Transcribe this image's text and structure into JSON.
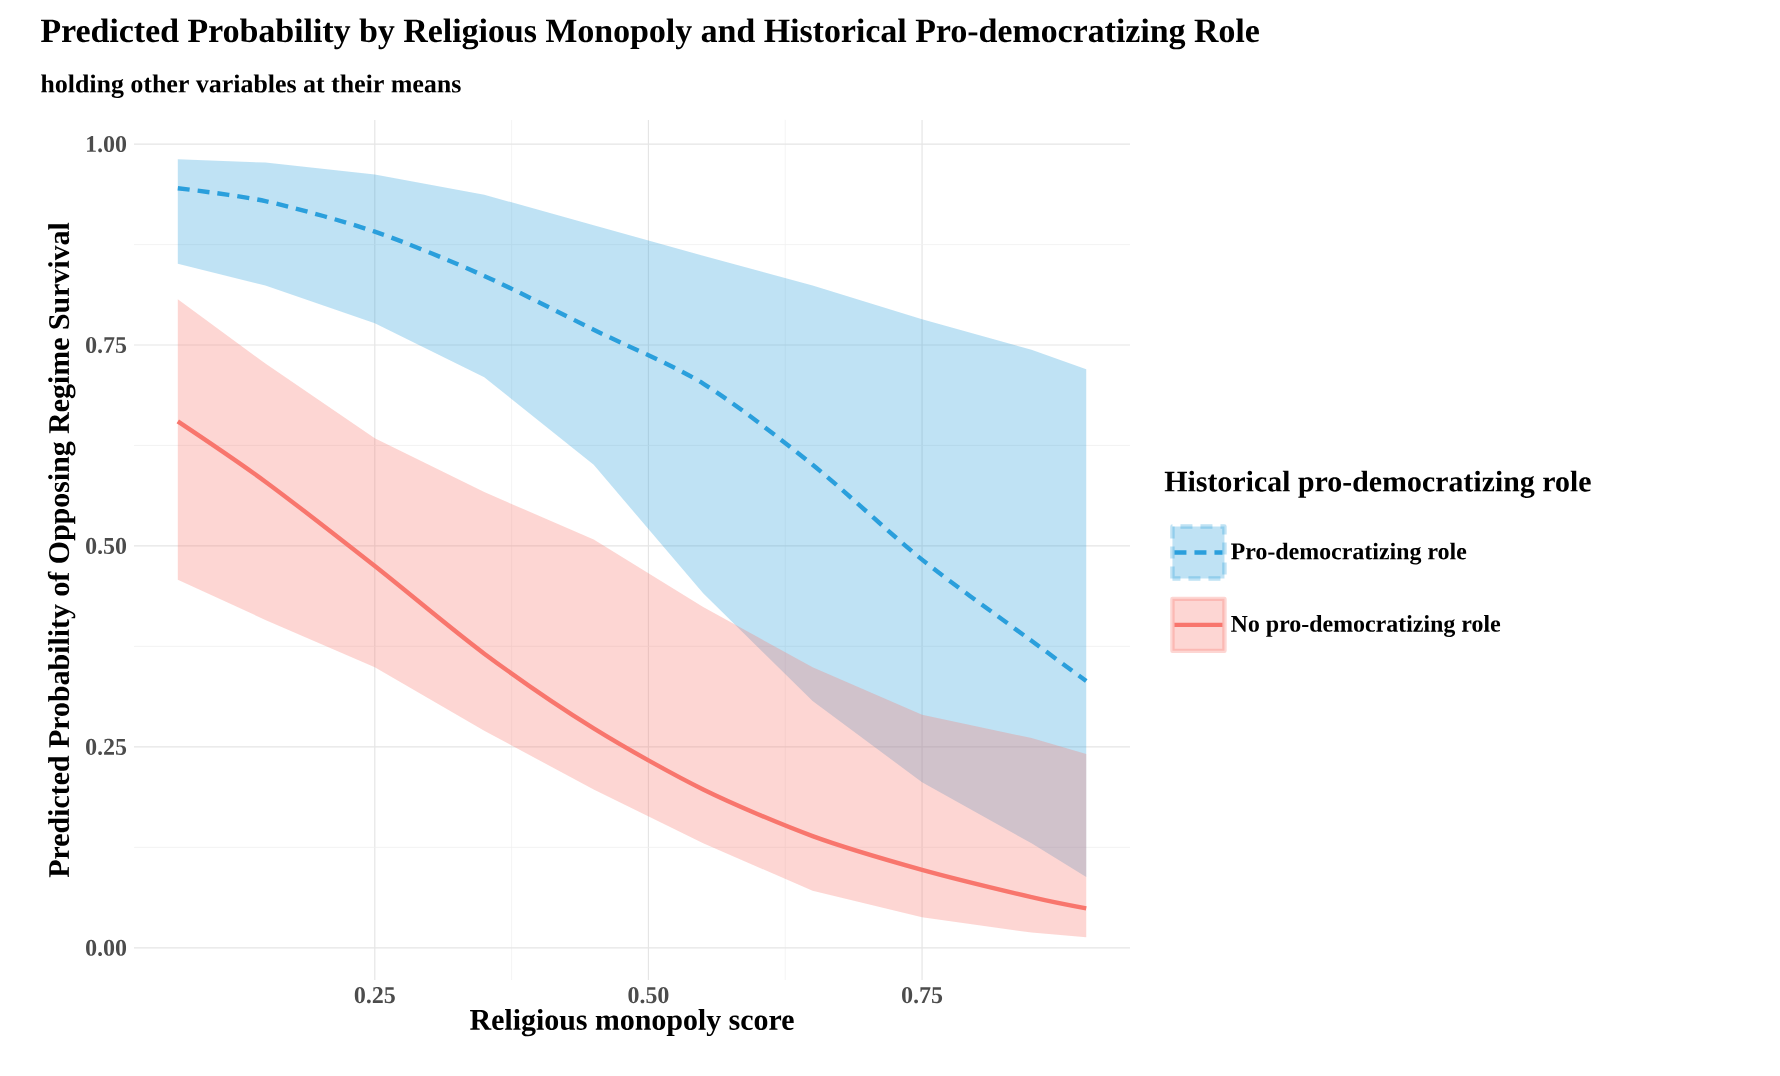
{
  "chart_data": {
    "type": "line",
    "title": "Predicted Probability by Religious Monopoly and Historical Pro-democratizing Role",
    "subtitle": "holding other variables at their means",
    "xlabel": "Religious monopoly score",
    "ylabel": "Predicted Probability of Opposing Regime Survival",
    "legend_title": "Historical pro-democratizing role",
    "xlim": [
      0.03,
      0.94
    ],
    "ylim": [
      -0.04,
      1.03
    ],
    "xticks": [
      {
        "value": 0.25,
        "label": "0.25"
      },
      {
        "value": 0.5,
        "label": "0.50"
      },
      {
        "value": 0.75,
        "label": "0.75"
      }
    ],
    "yticks": [
      {
        "value": 0,
        "label": "0.00"
      },
      {
        "value": 0.25,
        "label": "0.25"
      },
      {
        "value": 0.5,
        "label": "0.50"
      },
      {
        "value": 0.75,
        "label": "0.75"
      },
      {
        "value": 1,
        "label": "1.00"
      }
    ],
    "grid": true,
    "legend": "right",
    "x": [
      0.07,
      0.15,
      0.25,
      0.35,
      0.45,
      0.55,
      0.65,
      0.75,
      0.85,
      0.9
    ],
    "series": [
      {
        "name": "Pro-democratizing role",
        "color": "#2a9fdc",
        "line_style": "dashed",
        "values": [
          0.945,
          0.929,
          0.891,
          0.836,
          0.769,
          0.702,
          0.601,
          0.483,
          0.382,
          0.332
        ],
        "lower": [
          0.851,
          0.824,
          0.777,
          0.71,
          0.601,
          0.441,
          0.307,
          0.206,
          0.13,
          0.088
        ],
        "upper": [
          0.981,
          0.977,
          0.962,
          0.937,
          0.899,
          0.861,
          0.824,
          0.782,
          0.744,
          0.72
        ]
      },
      {
        "name": "No pro-democratizing role",
        "color": "#f8766d",
        "line_style": "solid",
        "values": [
          0.655,
          0.58,
          0.475,
          0.366,
          0.273,
          0.197,
          0.139,
          0.097,
          0.063,
          0.049
        ],
        "lower": [
          0.458,
          0.408,
          0.349,
          0.27,
          0.197,
          0.13,
          0.071,
          0.038,
          0.019,
          0.013
        ],
        "upper": [
          0.807,
          0.727,
          0.634,
          0.567,
          0.508,
          0.424,
          0.349,
          0.29,
          0.261,
          0.241
        ]
      }
    ]
  }
}
